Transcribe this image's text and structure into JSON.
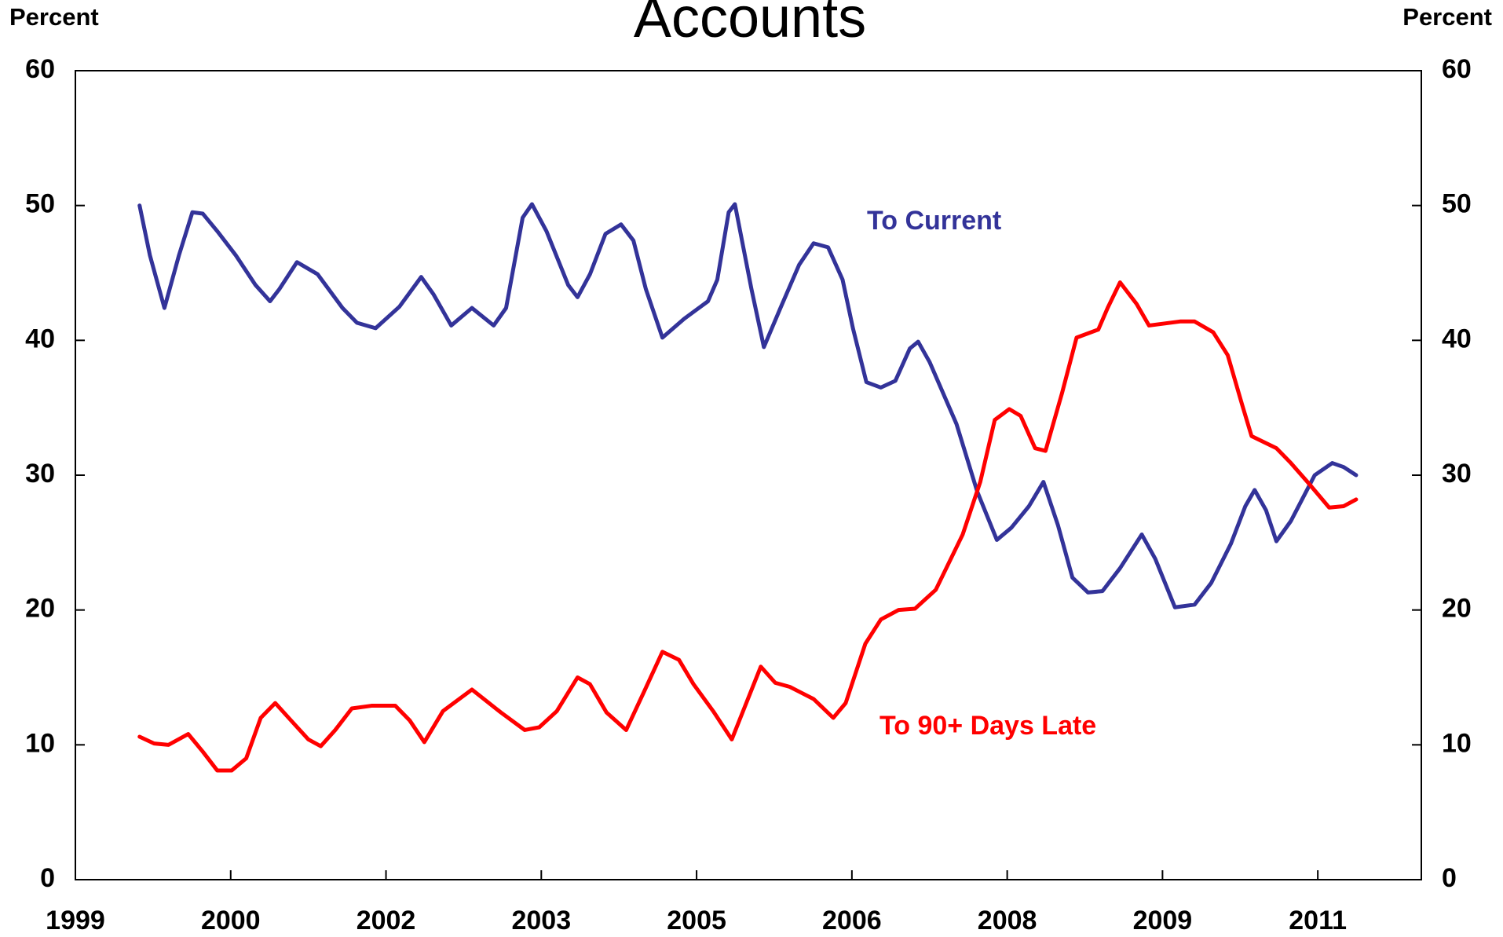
{
  "chart_data": {
    "type": "line",
    "title": "Accounts",
    "y_label": "Percent",
    "y2_label": "Percent",
    "xlim": [
      1999,
      2012
    ],
    "xticks": [
      {
        "value": 1999,
        "label": "1999"
      },
      {
        "value": 2000.5,
        "label": "2000"
      },
      {
        "value": 2002,
        "label": "2002"
      },
      {
        "value": 2003.5,
        "label": "2003"
      },
      {
        "value": 2005,
        "label": "2005"
      },
      {
        "value": 2006.5,
        "label": "2006"
      },
      {
        "value": 2008,
        "label": "2008"
      },
      {
        "value": 2009.5,
        "label": "2009"
      },
      {
        "value": 2011,
        "label": "2011"
      }
    ],
    "ylim": [
      0,
      60
    ],
    "yticks": [
      0,
      10,
      20,
      30,
      40,
      50,
      60
    ],
    "y2lim": [
      0,
      60
    ],
    "y2ticks": [
      0,
      10,
      20,
      30,
      40,
      50,
      60
    ],
    "series": [
      {
        "name": "To Current",
        "color": "#333399",
        "x": [
          1999.62,
          1999.72,
          1999.86,
          2000.0,
          2000.13,
          2000.23,
          2000.37,
          2000.55,
          2000.74,
          2000.88,
          2000.97,
          2001.14,
          2001.34,
          2001.58,
          2001.72,
          2001.9,
          2002.13,
          2002.34,
          2002.46,
          2002.63,
          2002.83,
          2003.04,
          2003.16,
          2003.32,
          2003.41,
          2003.55,
          2003.76,
          2003.85,
          2003.97,
          2004.12,
          2004.27,
          2004.39,
          2004.51,
          2004.67,
          2004.88,
          2005.11,
          2005.2,
          2005.31,
          2005.37,
          2005.53,
          2005.65,
          2005.81,
          2005.99,
          2006.13,
          2006.27,
          2006.41,
          2006.51,
          2006.64,
          2006.78,
          2006.92,
          2007.06,
          2007.14,
          2007.25,
          2007.51,
          2007.71,
          2007.9,
          2008.04,
          2008.21,
          2008.35,
          2008.49,
          2008.63,
          2008.78,
          2008.92,
          2009.09,
          2009.3,
          2009.43,
          2009.62,
          2009.81,
          2009.97,
          2010.16,
          2010.3,
          2010.39,
          2010.5,
          2010.6,
          2010.74,
          2010.97,
          2011.14,
          2011.25,
          2011.37
        ],
        "values": [
          50.0,
          46.3,
          42.4,
          46.3,
          49.5,
          49.4,
          48.1,
          46.3,
          44.1,
          42.9,
          43.8,
          45.8,
          44.9,
          42.4,
          41.3,
          40.9,
          42.5,
          44.7,
          43.4,
          41.1,
          42.4,
          41.1,
          42.4,
          49.1,
          50.1,
          48.1,
          44.1,
          43.2,
          44.9,
          47.9,
          48.6,
          47.4,
          43.8,
          40.2,
          41.6,
          42.9,
          44.5,
          49.5,
          50.1,
          43.8,
          39.5,
          42.4,
          45.6,
          47.2,
          46.9,
          44.5,
          40.9,
          36.9,
          36.5,
          37.0,
          39.4,
          39.9,
          38.4,
          33.8,
          28.8,
          25.2,
          26.1,
          27.7,
          29.5,
          26.3,
          22.4,
          21.3,
          21.4,
          23.1,
          25.6,
          23.8,
          20.2,
          20.4,
          22.0,
          24.9,
          27.7,
          28.9,
          27.4,
          25.1,
          26.6,
          30.0,
          30.9,
          30.6,
          30.0
        ]
      },
      {
        "name": "To 90+ Days Late",
        "color": "#ff0000",
        "x": [
          1999.62,
          1999.76,
          1999.9,
          2000.09,
          2000.23,
          2000.37,
          2000.51,
          2000.65,
          2000.79,
          2000.93,
          2001.06,
          2001.25,
          2001.37,
          2001.51,
          2001.67,
          2001.86,
          2002.09,
          2002.23,
          2002.37,
          2002.55,
          2002.83,
          2003.11,
          2003.34,
          2003.48,
          2003.65,
          2003.85,
          2003.97,
          2004.13,
          2004.32,
          2004.49,
          2004.67,
          2004.83,
          2004.97,
          2005.16,
          2005.34,
          2005.48,
          2005.62,
          2005.76,
          2005.9,
          2006.13,
          2006.32,
          2006.44,
          2006.63,
          2006.78,
          2006.95,
          2007.11,
          2007.31,
          2007.57,
          2007.74,
          2007.88,
          2008.02,
          2008.13,
          2008.27,
          2008.37,
          2008.53,
          2008.67,
          2008.88,
          2008.97,
          2009.09,
          2009.25,
          2009.37,
          2009.67,
          2009.81,
          2009.99,
          2010.13,
          2010.27,
          2010.36,
          2010.6,
          2010.74,
          2010.9,
          2011.11,
          2011.25,
          2011.37
        ],
        "values": [
          10.6,
          10.1,
          10.0,
          10.8,
          9.5,
          8.1,
          8.1,
          9.0,
          12.0,
          13.1,
          12.0,
          10.4,
          9.9,
          11.1,
          12.7,
          12.9,
          12.9,
          11.8,
          10.2,
          12.5,
          14.1,
          12.4,
          11.1,
          11.3,
          12.5,
          15.0,
          14.5,
          12.4,
          11.1,
          13.9,
          16.9,
          16.3,
          14.5,
          12.5,
          10.4,
          13.1,
          15.8,
          14.6,
          14.3,
          13.4,
          12.0,
          13.1,
          17.5,
          19.3,
          20.0,
          20.1,
          21.5,
          25.6,
          29.5,
          34.1,
          34.9,
          34.4,
          32.0,
          31.8,
          36.1,
          40.2,
          40.8,
          42.4,
          44.3,
          42.7,
          41.1,
          41.4,
          41.4,
          40.6,
          38.9,
          35.2,
          32.9,
          32.0,
          30.9,
          29.5,
          27.6,
          27.7,
          28.2
        ]
      }
    ]
  }
}
